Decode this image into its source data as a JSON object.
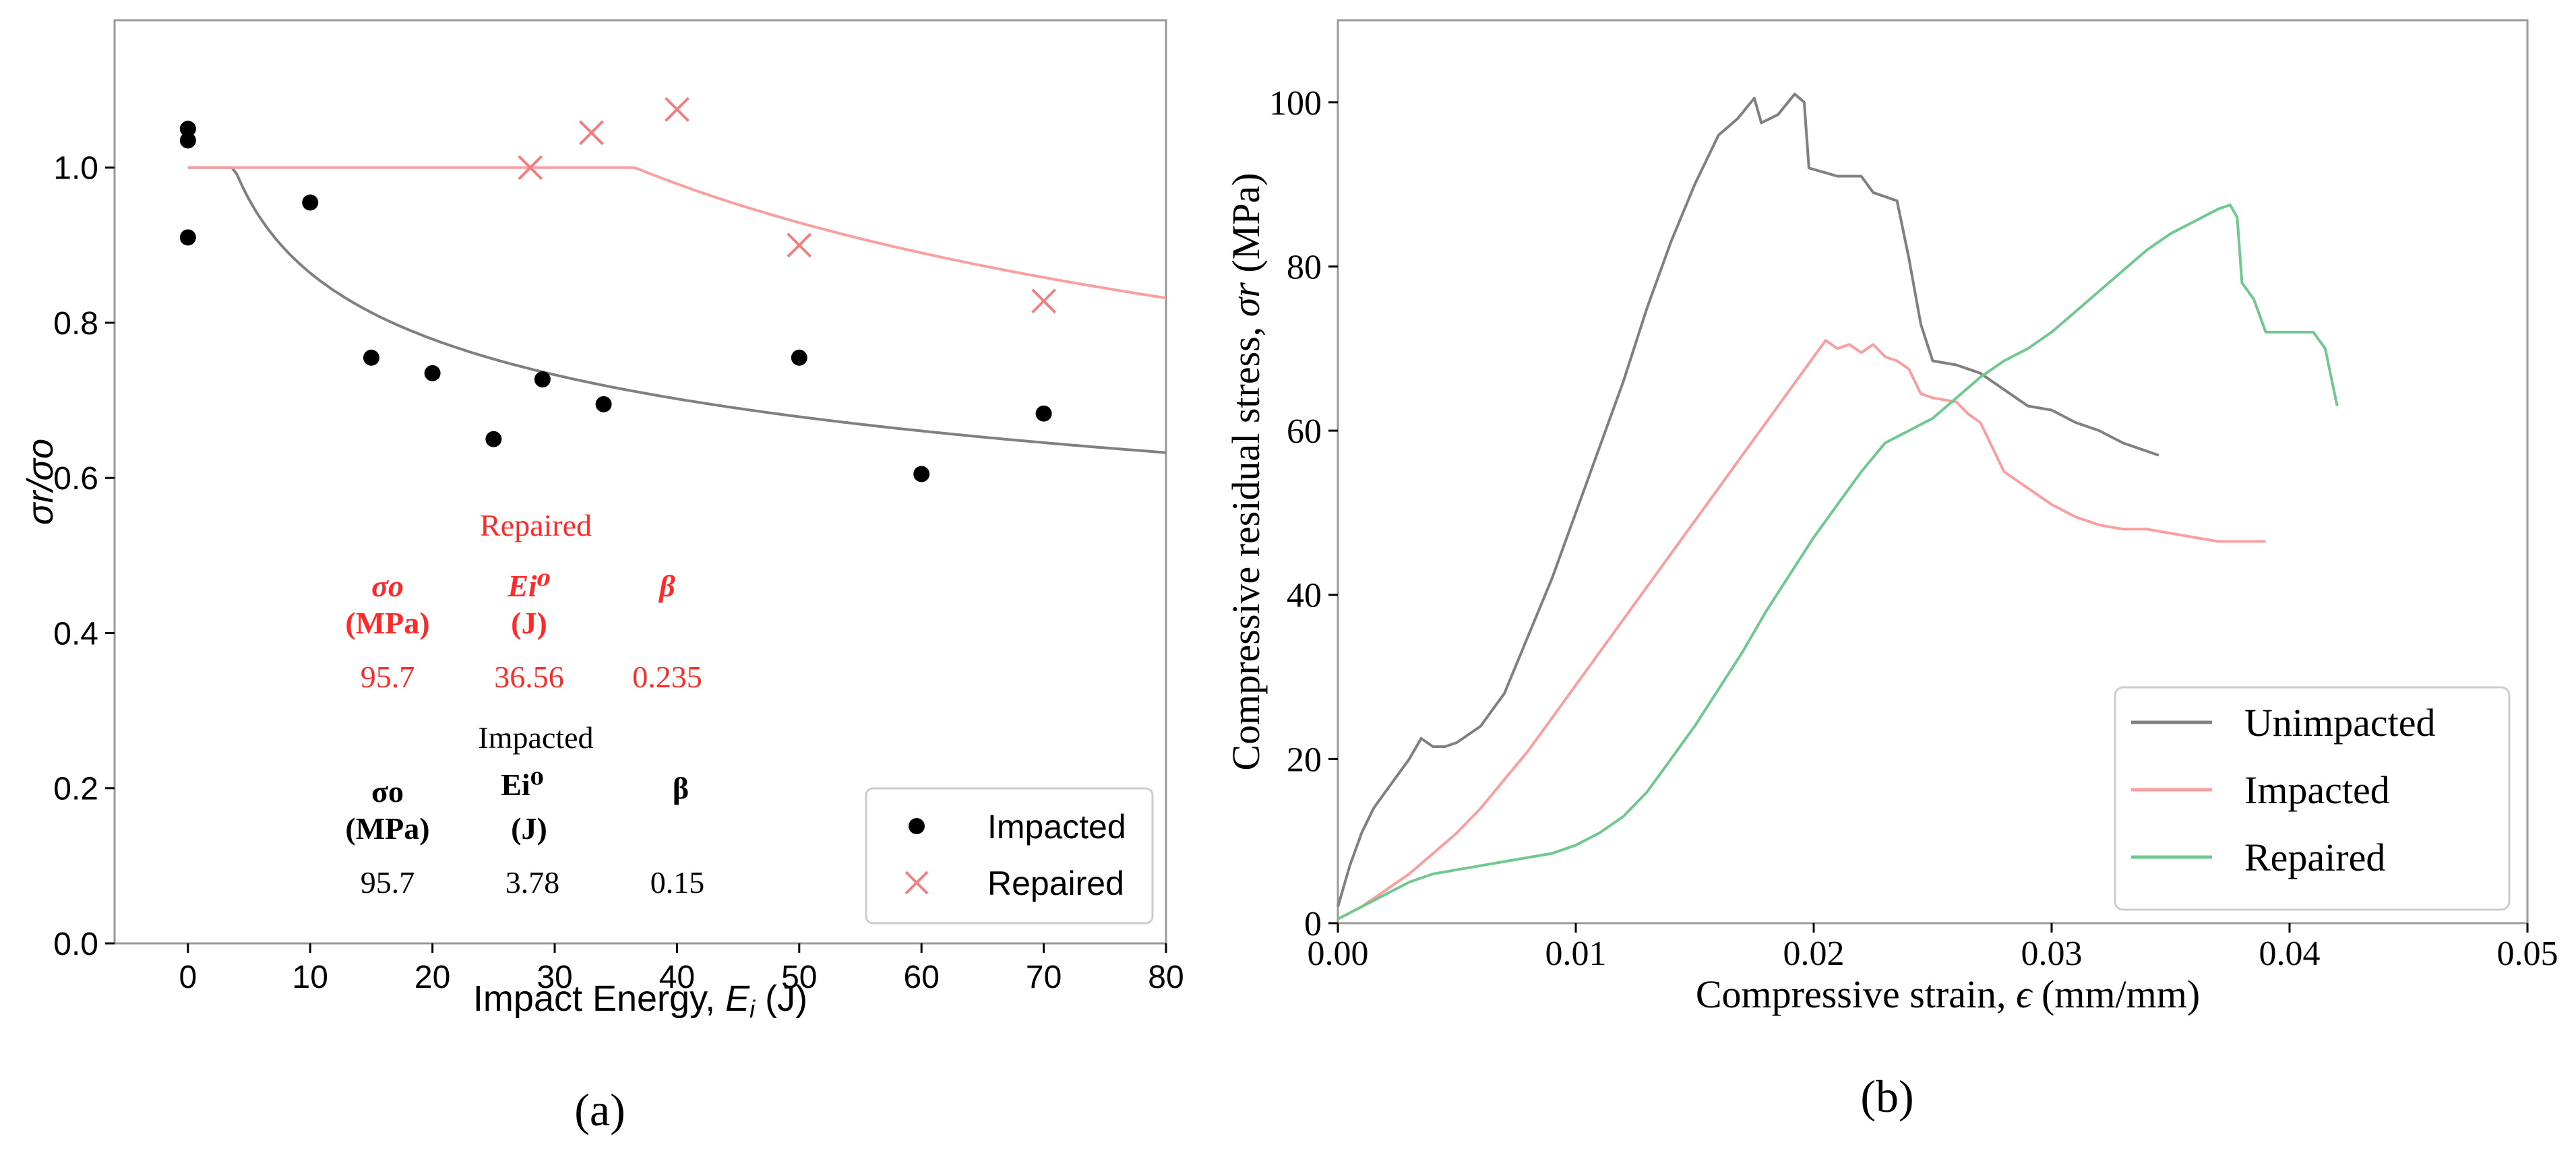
{
  "chart_data": [
    {
      "type": "scatter",
      "panel_label": "(a)",
      "xlabel": "Impact Energy, ",
      "xlabel_var": "E",
      "xlabel_sub": "i",
      "xlabel_unit": " (J)",
      "ylabel": "σr/σo",
      "xlim": [
        -6,
        80
      ],
      "ylim": [
        0.0,
        1.19
      ],
      "xticks": [
        0,
        10,
        20,
        30,
        40,
        50,
        60,
        70,
        80
      ],
      "yticks": [
        0.0,
        0.2,
        0.4,
        0.6,
        0.8,
        1.0
      ],
      "grid": false,
      "legend_position": "bottom-right",
      "series": [
        {
          "name": "Impacted",
          "marker": "dot",
          "color": "#000000",
          "points": [
            [
              0,
              1.05
            ],
            [
              0,
              1.035
            ],
            [
              0,
              0.91
            ],
            [
              10,
              0.955
            ],
            [
              15,
              0.755
            ],
            [
              20,
              0.735
            ],
            [
              25,
              0.65
            ],
            [
              29,
              0.727
            ],
            [
              34,
              0.695
            ],
            [
              50,
              0.755
            ],
            [
              60,
              0.605
            ],
            [
              70,
              0.683
            ]
          ]
        },
        {
          "name": "Repaired",
          "marker": "x",
          "color": "#f08080",
          "points": [
            [
              28,
              1.0
            ],
            [
              33,
              1.045
            ],
            [
              40,
              1.075
            ],
            [
              50,
              0.9
            ],
            [
              70,
              0.828
            ]
          ]
        }
      ],
      "fit_curves": [
        {
          "name": "Impacted fit",
          "color": "#808080",
          "sigma_o": 95.7,
          "Ei0": 3.78,
          "beta": 0.15,
          "x_range": [
            0,
            80
          ]
        },
        {
          "name": "Repaired fit",
          "color": "#f8a0a0",
          "sigma_o": 95.7,
          "Ei0": 36.56,
          "beta": 0.235,
          "x_range": [
            0,
            80
          ]
        }
      ],
      "annotation_tables": [
        {
          "title": "Repaired",
          "color": "#ff2a2a",
          "headers": [
            "σo",
            "Ei⁰",
            "β"
          ],
          "units": [
            "(MPa)",
            "(J)",
            ""
          ],
          "values": [
            "95.7",
            "36.56",
            "0.235"
          ]
        },
        {
          "title": "Impacted",
          "color": "#000000",
          "headers": [
            "σo",
            "Ei⁰",
            "β"
          ],
          "units": [
            "(MPa)",
            "(J)",
            ""
          ],
          "values": [
            "95.7",
            "3.78",
            "0.15"
          ]
        }
      ]
    },
    {
      "type": "line",
      "panel_label": "(b)",
      "xlabel": "Compressive strain, ",
      "xlabel_var": "ϵ",
      "xlabel_unit": " (mm/mm)",
      "ylabel": "Compressive residual stress, ",
      "ylabel_var": "σr",
      "ylabel_unit": " (MPa)",
      "xlim": [
        0,
        0.05
      ],
      "ylim": [
        0,
        110
      ],
      "xticks": [
        "0.00",
        "0.01",
        "0.02",
        "0.03",
        "0.04",
        "0.05"
      ],
      "yticks": [
        "0",
        "20",
        "40",
        "60",
        "80",
        "100"
      ],
      "grid": false,
      "legend_position": "bottom-right",
      "series": [
        {
          "name": "Unimpacted",
          "color": "#808080",
          "points": [
            [
              0,
              2
            ],
            [
              0.0005,
              7
            ],
            [
              0.001,
              11
            ],
            [
              0.0015,
              14
            ],
            [
              0.002,
              16
            ],
            [
              0.0025,
              18
            ],
            [
              0.003,
              20
            ],
            [
              0.0035,
              22.5
            ],
            [
              0.004,
              21.5
            ],
            [
              0.0045,
              21.5
            ],
            [
              0.005,
              22
            ],
            [
              0.006,
              24
            ],
            [
              0.007,
              28
            ],
            [
              0.008,
              35
            ],
            [
              0.009,
              42
            ],
            [
              0.01,
              50
            ],
            [
              0.011,
              58
            ],
            [
              0.012,
              66
            ],
            [
              0.013,
              75
            ],
            [
              0.014,
              83
            ],
            [
              0.015,
              90
            ],
            [
              0.016,
              96
            ],
            [
              0.0168,
              98
            ],
            [
              0.0175,
              100.5
            ],
            [
              0.0178,
              97.5
            ],
            [
              0.0185,
              98.5
            ],
            [
              0.0192,
              101
            ],
            [
              0.0196,
              100
            ],
            [
              0.0198,
              92
            ],
            [
              0.021,
              91
            ],
            [
              0.022,
              91
            ],
            [
              0.0225,
              89
            ],
            [
              0.0235,
              88
            ],
            [
              0.024,
              81
            ],
            [
              0.0245,
              73
            ],
            [
              0.025,
              68.5
            ],
            [
              0.026,
              68
            ],
            [
              0.027,
              67
            ],
            [
              0.028,
              65
            ],
            [
              0.029,
              63
            ],
            [
              0.03,
              62.5
            ],
            [
              0.031,
              61
            ],
            [
              0.032,
              60
            ],
            [
              0.033,
              58.5
            ],
            [
              0.034,
              57.5
            ],
            [
              0.0345,
              57
            ]
          ]
        },
        {
          "name": "Impacted",
          "color": "#f8a0a0",
          "points": [
            [
              0,
              0.5
            ],
            [
              0.001,
              2
            ],
            [
              0.002,
              4
            ],
            [
              0.003,
              6
            ],
            [
              0.004,
              8.5
            ],
            [
              0.005,
              11
            ],
            [
              0.006,
              14
            ],
            [
              0.007,
              17.5
            ],
            [
              0.008,
              21
            ],
            [
              0.009,
              25
            ],
            [
              0.01,
              29
            ],
            [
              0.011,
              33
            ],
            [
              0.012,
              37
            ],
            [
              0.013,
              41
            ],
            [
              0.014,
              45
            ],
            [
              0.015,
              49
            ],
            [
              0.016,
              53
            ],
            [
              0.017,
              57
            ],
            [
              0.018,
              61
            ],
            [
              0.019,
              65
            ],
            [
              0.02,
              69
            ],
            [
              0.0205,
              71
            ],
            [
              0.021,
              70
            ],
            [
              0.0215,
              70.5
            ],
            [
              0.022,
              69.5
            ],
            [
              0.0225,
              70.5
            ],
            [
              0.023,
              69
            ],
            [
              0.0235,
              68.5
            ],
            [
              0.024,
              67.5
            ],
            [
              0.0245,
              64.5
            ],
            [
              0.025,
              64
            ],
            [
              0.026,
              63.5
            ],
            [
              0.0265,
              62
            ],
            [
              0.027,
              61
            ],
            [
              0.0275,
              58
            ],
            [
              0.028,
              55
            ],
            [
              0.029,
              53
            ],
            [
              0.03,
              51
            ],
            [
              0.031,
              49.5
            ],
            [
              0.032,
              48.5
            ],
            [
              0.033,
              48
            ],
            [
              0.034,
              48
            ],
            [
              0.035,
              47.5
            ],
            [
              0.036,
              47
            ],
            [
              0.037,
              46.5
            ],
            [
              0.038,
              46.5
            ],
            [
              0.039,
              46.5
            ]
          ]
        },
        {
          "name": "Repaired",
          "color": "#70c890",
          "points": [
            [
              0,
              0.5
            ],
            [
              0.001,
              2
            ],
            [
              0.002,
              3.5
            ],
            [
              0.003,
              5
            ],
            [
              0.004,
              6
            ],
            [
              0.005,
              6.5
            ],
            [
              0.006,
              7
            ],
            [
              0.007,
              7.5
            ],
            [
              0.008,
              8
            ],
            [
              0.009,
              8.5
            ],
            [
              0.01,
              9.5
            ],
            [
              0.011,
              11
            ],
            [
              0.012,
              13
            ],
            [
              0.013,
              16
            ],
            [
              0.014,
              20
            ],
            [
              0.015,
              24
            ],
            [
              0.016,
              28.5
            ],
            [
              0.017,
              33
            ],
            [
              0.018,
              38
            ],
            [
              0.019,
              42.5
            ],
            [
              0.02,
              47
            ],
            [
              0.021,
              51
            ],
            [
              0.022,
              55
            ],
            [
              0.023,
              58.5
            ],
            [
              0.024,
              60
            ],
            [
              0.025,
              61.5
            ],
            [
              0.026,
              64
            ],
            [
              0.027,
              66.5
            ],
            [
              0.028,
              68.5
            ],
            [
              0.029,
              70
            ],
            [
              0.03,
              72
            ],
            [
              0.031,
              74.5
            ],
            [
              0.032,
              77
            ],
            [
              0.033,
              79.5
            ],
            [
              0.034,
              82
            ],
            [
              0.035,
              84
            ],
            [
              0.036,
              85.5
            ],
            [
              0.037,
              87
            ],
            [
              0.0375,
              87.5
            ],
            [
              0.0378,
              86
            ],
            [
              0.038,
              78
            ],
            [
              0.0385,
              76
            ],
            [
              0.039,
              72
            ],
            [
              0.04,
              72
            ],
            [
              0.041,
              72
            ],
            [
              0.0415,
              70
            ],
            [
              0.042,
              63
            ]
          ]
        }
      ]
    }
  ]
}
